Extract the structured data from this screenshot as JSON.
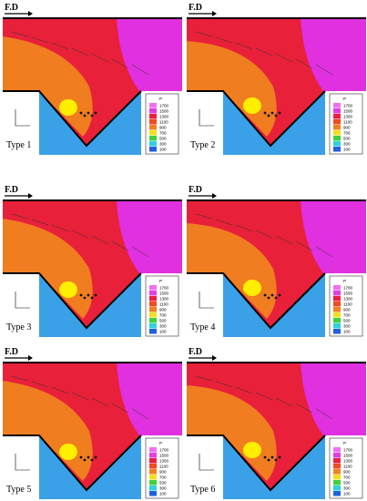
{
  "panels": [
    {
      "fd_label": "F.D",
      "type_label": "Type 1"
    },
    {
      "fd_label": "F.D",
      "type_label": "Type 2"
    },
    {
      "fd_label": "F.D",
      "type_label": "Type 3"
    },
    {
      "fd_label": "F.D",
      "type_label": "Type 4"
    },
    {
      "fd_label": "F.D",
      "type_label": "Type 5"
    },
    {
      "fd_label": "F.D",
      "type_label": "Type 6"
    }
  ],
  "legend": {
    "title": "P",
    "values": [
      "1700",
      "1500",
      "1300",
      "1100",
      "900",
      "700",
      "500",
      "300",
      "100"
    ]
  }
}
